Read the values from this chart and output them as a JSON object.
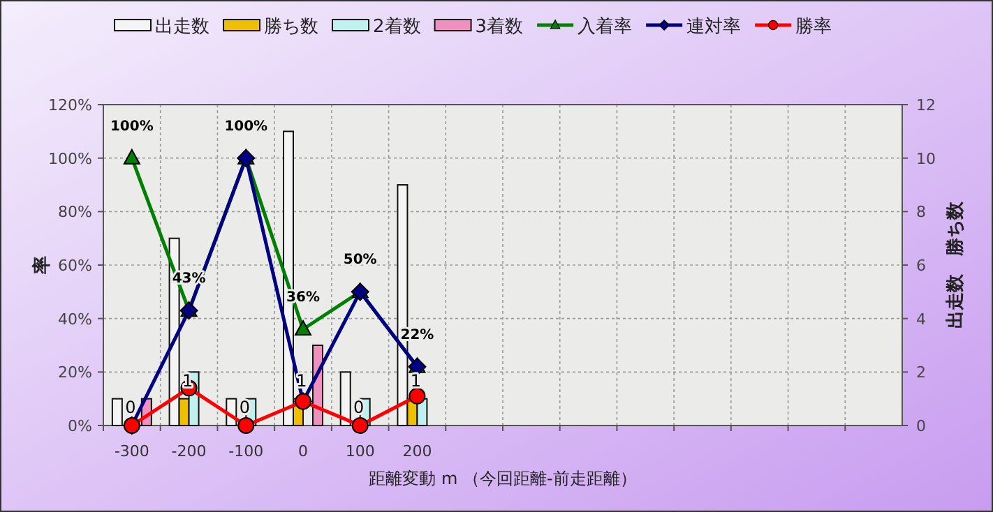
{
  "chart_data": {
    "type": "bar",
    "xlabel": "距離変動 m （今回距離-前走距離）",
    "ylabel": "率",
    "y2label": "出走数　勝ち数",
    "categories": [
      "-300",
      "-200",
      "-100",
      "0",
      "100",
      "200",
      null,
      null,
      null,
      null,
      null,
      null,
      null,
      null
    ],
    "ylim": [
      0,
      120
    ],
    "yticks": [
      {
        "value": 0,
        "label": "0%"
      },
      {
        "value": 20,
        "label": "20%"
      },
      {
        "value": 40,
        "label": "40%"
      },
      {
        "value": 60,
        "label": "60%"
      },
      {
        "value": 80,
        "label": "80%"
      },
      {
        "value": 100,
        "label": "100%"
      },
      {
        "value": 120,
        "label": "120%"
      }
    ],
    "y2lim": [
      0,
      12
    ],
    "y2ticks": [
      0,
      2,
      4,
      6,
      8,
      10,
      12
    ],
    "grid": true,
    "legend": "top",
    "series": [
      {
        "name": "出走数",
        "axis": "y2",
        "color": "#f4f4f4",
        "values": [
          1,
          7,
          1,
          11,
          2,
          9,
          null,
          null,
          null,
          null,
          null,
          null,
          null,
          null
        ]
      },
      {
        "name": "勝ち数",
        "axis": "y2",
        "color": "#f0c000",
        "values": [
          0,
          1,
          0,
          1,
          0,
          1,
          null,
          null,
          null,
          null,
          null,
          null,
          null,
          null
        ],
        "value_labels": [
          "0",
          "1",
          "0",
          "1",
          "0",
          "1",
          null,
          null,
          null,
          null,
          null,
          null,
          null,
          null
        ]
      },
      {
        "name": "2着数",
        "axis": "y2",
        "color": "#c0f0f0",
        "values": [
          0,
          2,
          1,
          0,
          1,
          1,
          null,
          null,
          null,
          null,
          null,
          null,
          null,
          null
        ]
      },
      {
        "name": "3着数",
        "axis": "y2",
        "color": "#f090c0",
        "values": [
          1,
          0,
          0,
          3,
          0,
          0,
          null,
          null,
          null,
          null,
          null,
          null,
          null,
          null
        ]
      },
      {
        "name": "入着率",
        "type": "line",
        "color": "#008000",
        "marker": "triangle",
        "values": [
          100,
          43,
          100,
          36,
          50,
          22,
          null,
          null,
          null,
          null,
          null,
          null,
          null,
          null
        ],
        "value_labels": [
          "100%",
          "43%",
          "100%",
          "36%",
          "50%",
          "22%",
          null,
          null,
          null,
          null,
          null,
          null,
          null,
          null
        ]
      },
      {
        "name": "連対率",
        "type": "line",
        "color": "#000080",
        "marker": "diamond",
        "values": [
          0,
          43,
          100,
          9,
          50,
          22,
          null,
          null,
          null,
          null,
          null,
          null,
          null,
          null
        ]
      },
      {
        "name": "勝率",
        "type": "line",
        "color": "#ff0000",
        "marker": "circle",
        "values": [
          0,
          14,
          0,
          9,
          0,
          11,
          null,
          null,
          null,
          null,
          null,
          null,
          null,
          null
        ]
      }
    ]
  }
}
